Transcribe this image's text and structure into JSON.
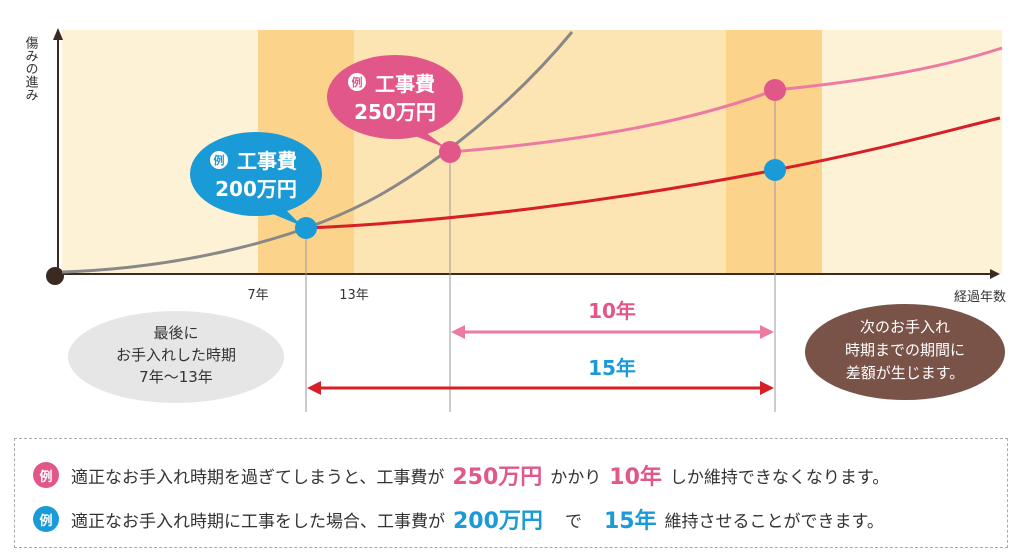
{
  "colors": {
    "pink": "#e2578a",
    "pink_light": "#ec7aa2",
    "red": "#d61f26",
    "blue": "#1a9ad6",
    "gray_curve": "#888888",
    "band_light": "#fde9c0",
    "band_dark": "#fbd38b",
    "gray_ellipse": "#e6e6e6",
    "brown_ellipse": "#7a5348"
  },
  "chart_data": {
    "type": "line",
    "ylabel": "傷みの進み",
    "xlabel": "経過年数",
    "x_ticks": [
      "7年",
      "13年"
    ],
    "series": [],
    "callouts": [
      {
        "badge": "例",
        "title": "工事費",
        "amount": "200万円",
        "color": "blue"
      },
      {
        "badge": "例",
        "title": "工事費",
        "amount": "250万円",
        "color": "pink"
      }
    ],
    "spans": [
      {
        "label": "10年",
        "color": "pink"
      },
      {
        "label": "15年",
        "color": "red"
      }
    ],
    "left_note": [
      "最後に",
      "お手入れした時期",
      "7年〜13年"
    ],
    "right_note": [
      "次のお手入れ",
      "時期までの期間に",
      "差額が生じます。"
    ]
  },
  "notes": [
    {
      "badge": "例",
      "pre": "適正なお手入れ時期を過ぎてしまうと、工事費が",
      "amount": "250万円",
      "mid": "かかり",
      "years": "10年",
      "post": "しか維持できなくなります。"
    },
    {
      "badge": "例",
      "pre": "適正なお手入れ時期に工事をした場合、工事費が",
      "amount": "200万円",
      "mid": "で",
      "years": "15年",
      "post": "維持させることができます。"
    }
  ]
}
